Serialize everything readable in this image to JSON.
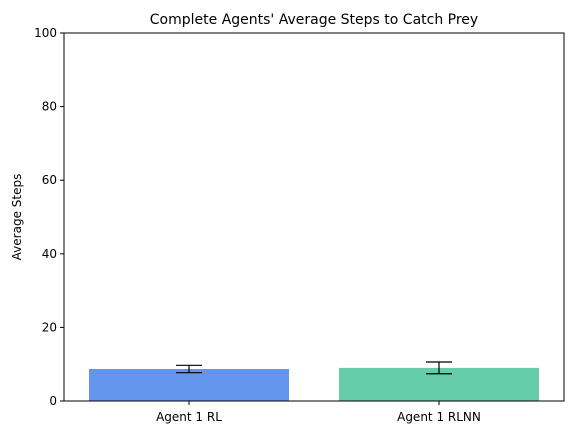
{
  "chart_data": {
    "type": "bar",
    "title": "Complete Agents' Average Steps to Catch Prey",
    "xlabel": "",
    "ylabel": "Average Steps",
    "categories": [
      "Agent 1 RL",
      "Agent 1 RLNN"
    ],
    "values": [
      8.7,
      9.0
    ],
    "error": [
      1.0,
      1.6
    ],
    "colors": [
      "#6495ED",
      "#66CDAA"
    ],
    "ylim": [
      0,
      100
    ],
    "yticks": [
      0,
      20,
      40,
      60,
      80,
      100
    ],
    "grid": false,
    "legend": "none"
  }
}
